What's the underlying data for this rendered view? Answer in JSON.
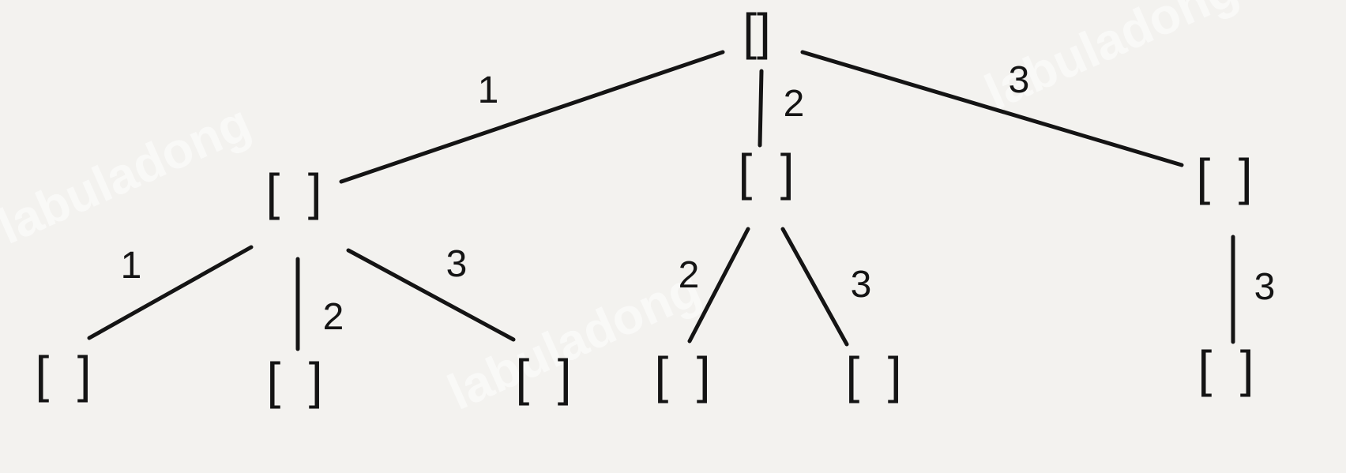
{
  "diagram": {
    "watermark": "labuladong",
    "nodes": [
      {
        "id": "root",
        "label": "[]"
      },
      {
        "id": "n1",
        "label": "[ ]"
      },
      {
        "id": "n2",
        "label": "[ ]"
      },
      {
        "id": "n3",
        "label": "[ ]"
      },
      {
        "id": "n11",
        "label": "[ ]"
      },
      {
        "id": "n12",
        "label": "[ ]"
      },
      {
        "id": "n13",
        "label": "[ ]"
      },
      {
        "id": "n22",
        "label": "[ ]"
      },
      {
        "id": "n23",
        "label": "[ ]"
      },
      {
        "id": "n33",
        "label": "[ ]"
      }
    ],
    "edges": [
      {
        "from": "root",
        "to": "n1",
        "label": "1"
      },
      {
        "from": "root",
        "to": "n2",
        "label": "2"
      },
      {
        "from": "root",
        "to": "n3",
        "label": "3"
      },
      {
        "from": "n1",
        "to": "n11",
        "label": "1"
      },
      {
        "from": "n1",
        "to": "n12",
        "label": "2"
      },
      {
        "from": "n1",
        "to": "n13",
        "label": "3"
      },
      {
        "from": "n2",
        "to": "n22",
        "label": "2"
      },
      {
        "from": "n2",
        "to": "n23",
        "label": "3"
      },
      {
        "from": "n3",
        "to": "n33",
        "label": "3"
      }
    ]
  }
}
